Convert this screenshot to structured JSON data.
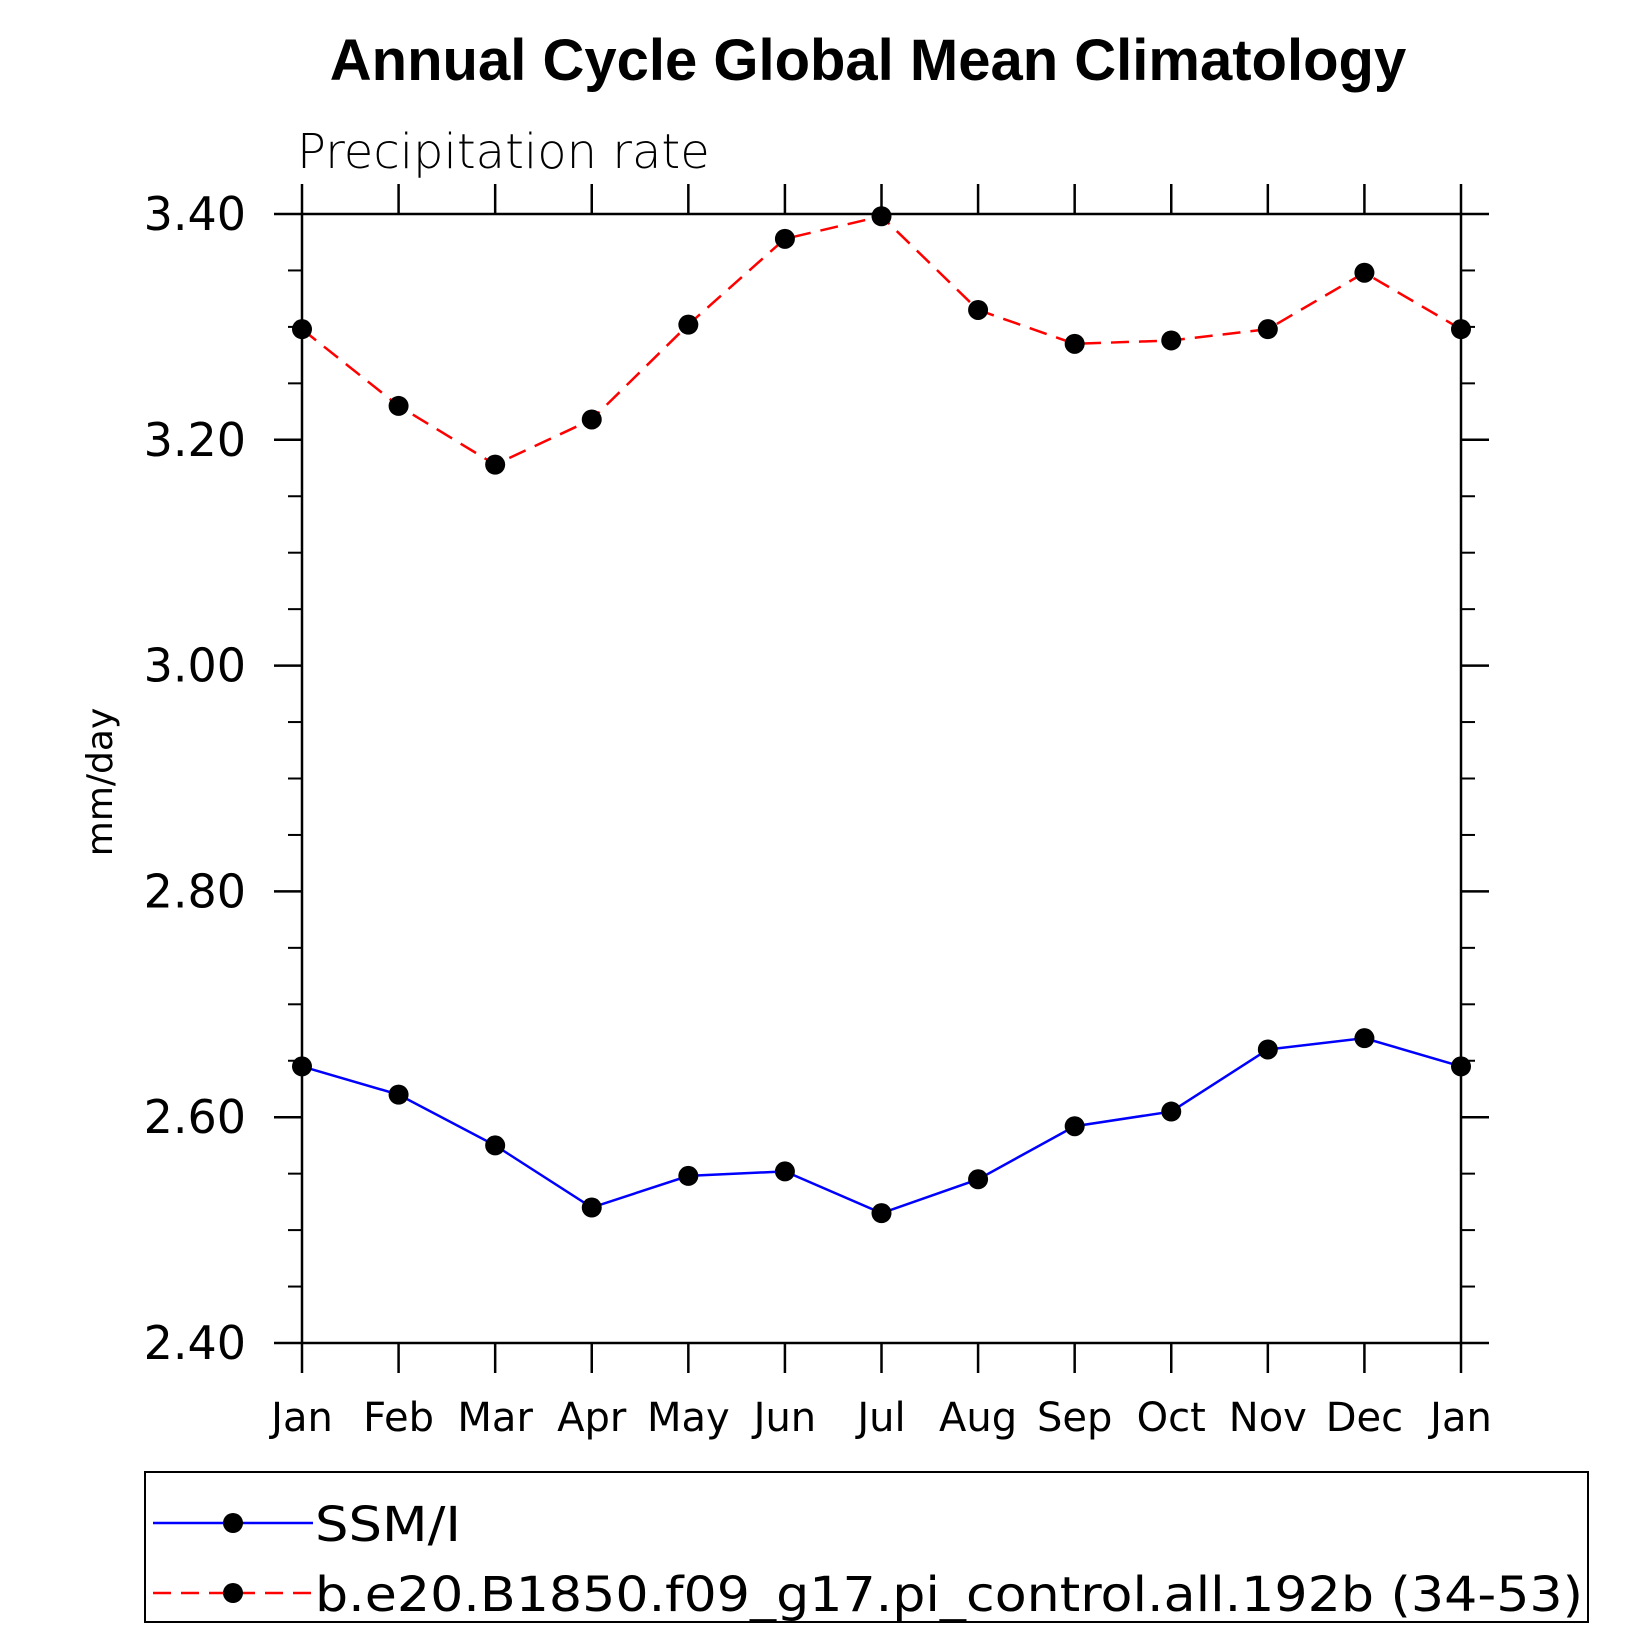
{
  "chart_data": {
    "type": "line",
    "title": "Annual Cycle Global Mean Climatology",
    "subtitle": "Precipitation rate",
    "xlabel": "",
    "ylabel": "mm/day",
    "categories": [
      "Jan",
      "Feb",
      "Mar",
      "Apr",
      "May",
      "Jun",
      "Jul",
      "Aug",
      "Sep",
      "Oct",
      "Nov",
      "Dec",
      "Jan"
    ],
    "ylim": [
      2.4,
      3.4
    ],
    "yticks": [
      "2.40",
      "2.60",
      "2.80",
      "3.00",
      "3.20",
      "3.40"
    ],
    "grid": false,
    "legend_position": "bottom",
    "series": [
      {
        "name": "SSM/I",
        "color": "#0000ff",
        "line_style": "solid",
        "marker": "filled-circle",
        "values": [
          2.645,
          2.62,
          2.575,
          2.52,
          2.548,
          2.552,
          2.515,
          2.545,
          2.592,
          2.605,
          2.66,
          2.67,
          2.645
        ]
      },
      {
        "name": "b.e20.B1850.f09_g17.pi_control.all.192b (34-53)",
        "color": "#ff0000",
        "line_style": "dashed",
        "marker": "filled-circle",
        "values": [
          3.298,
          3.23,
          3.178,
          3.218,
          3.302,
          3.378,
          3.398,
          3.315,
          3.285,
          3.288,
          3.298,
          3.348,
          3.298
        ]
      }
    ]
  }
}
